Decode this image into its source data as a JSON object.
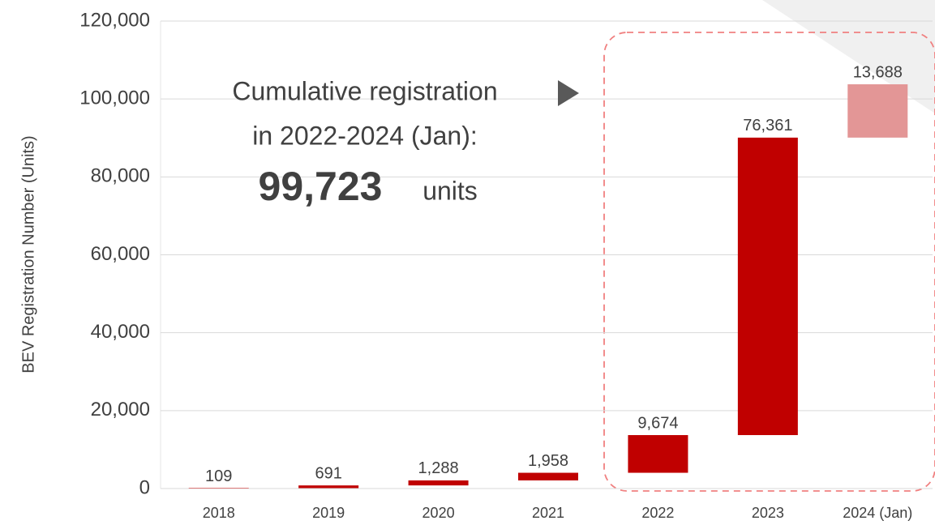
{
  "chart_data": {
    "type": "waterfall",
    "y_label": "BEV Registration Number (Units)",
    "categories": [
      "2018",
      "2019",
      "2020",
      "2021",
      "2022",
      "2023",
      "2024 (Jan)"
    ],
    "values": [
      109,
      691,
      1288,
      1958,
      9674,
      76361,
      13688
    ],
    "value_labels": [
      "109",
      "691",
      "1,288",
      "1,958",
      "9,674",
      "76,361",
      "13,688"
    ],
    "colors": [
      "#c00000",
      "#c00000",
      "#c00000",
      "#c00000",
      "#c00000",
      "#c00000",
      "#e39696"
    ],
    "ylim": [
      0,
      120000
    ],
    "yticks": [
      0,
      {
        "value": 20000,
        "label": "20,000"
      },
      {
        "value": 40000,
        "label": "40,000"
      },
      {
        "value": 60000,
        "label": "60,000"
      },
      {
        "value": 80000,
        "label": "80,000"
      },
      {
        "value": 100000,
        "label": "100,000"
      },
      {
        "value": 120000,
        "label": "120,000"
      }
    ],
    "grid": true,
    "annotation": {
      "line1": "Cumulative registration",
      "line2": "in 2022-2024 (Jan):",
      "number": "99,723",
      "unit": "units"
    }
  }
}
